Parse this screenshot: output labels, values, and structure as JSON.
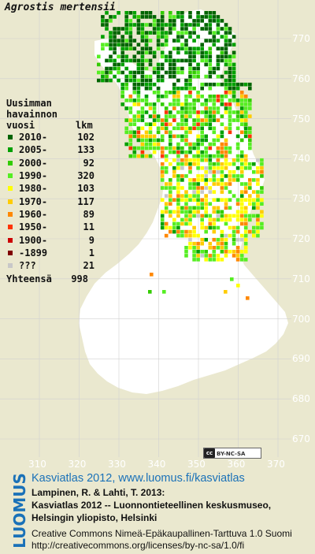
{
  "title": "Agrostis mertensii",
  "legend": {
    "header": [
      "Uusimman",
      "havainnon",
      "vuosi"
    ],
    "count_header": "lkm",
    "items": [
      {
        "label": "2010-",
        "count": "102",
        "color": "#006400"
      },
      {
        "label": "2005-",
        "count": "133",
        "color": "#00a000"
      },
      {
        "label": "2000-",
        "count": "92",
        "color": "#33cc00"
      },
      {
        "label": "1990-",
        "count": "320",
        "color": "#55ee22"
      },
      {
        "label": "1980-",
        "count": "103",
        "color": "#ffff00"
      },
      {
        "label": "1970-",
        "count": "117",
        "color": "#ffcc00"
      },
      {
        "label": "1960-",
        "count": "89",
        "color": "#ff8800"
      },
      {
        "label": "1950-",
        "count": "11",
        "color": "#ff3300"
      },
      {
        "label": "1900-",
        "count": "9",
        "color": "#cc0000"
      },
      {
        "label": "-1899",
        "count": "1",
        "color": "#800000"
      },
      {
        "label": "???",
        "count": "21",
        "color": "#c8c8c8"
      }
    ],
    "total_label": "Yhteensä",
    "total_count": "998"
  },
  "y_ticks": [
    "770",
    "760",
    "750",
    "740",
    "730",
    "720",
    "710",
    "700",
    "690",
    "680",
    "670"
  ],
  "x_ticks": [
    "310",
    "320",
    "330",
    "340",
    "350",
    "360",
    "370"
  ],
  "license_badge": {
    "icon": "cc",
    "text": "BY-NC-SA"
  },
  "logo_text": "LUOMUS",
  "footer": {
    "line1": "Kasviatlas 2012, www.luomus.fi/kasviatlas",
    "line2": "Lampinen, R. & Lahti, T. 2013:",
    "line3": "Kasviatlas 2012 -- Luonnontieteellinen keskusmuseo,",
    "line4": "Helsingin yliopisto, Helsinki",
    "line5": "Creative Commons Nimeä-Epäkaupallinen-Tarttuva 1.0 Suomi",
    "line6": "http://creativecommons.org/licenses/by-nc-sa/1.0/fi"
  },
  "colors": {
    "background": "#eae8cf",
    "land": "#ffffff",
    "grid": "#d0d0d0",
    "accent": "#1a71b8"
  }
}
